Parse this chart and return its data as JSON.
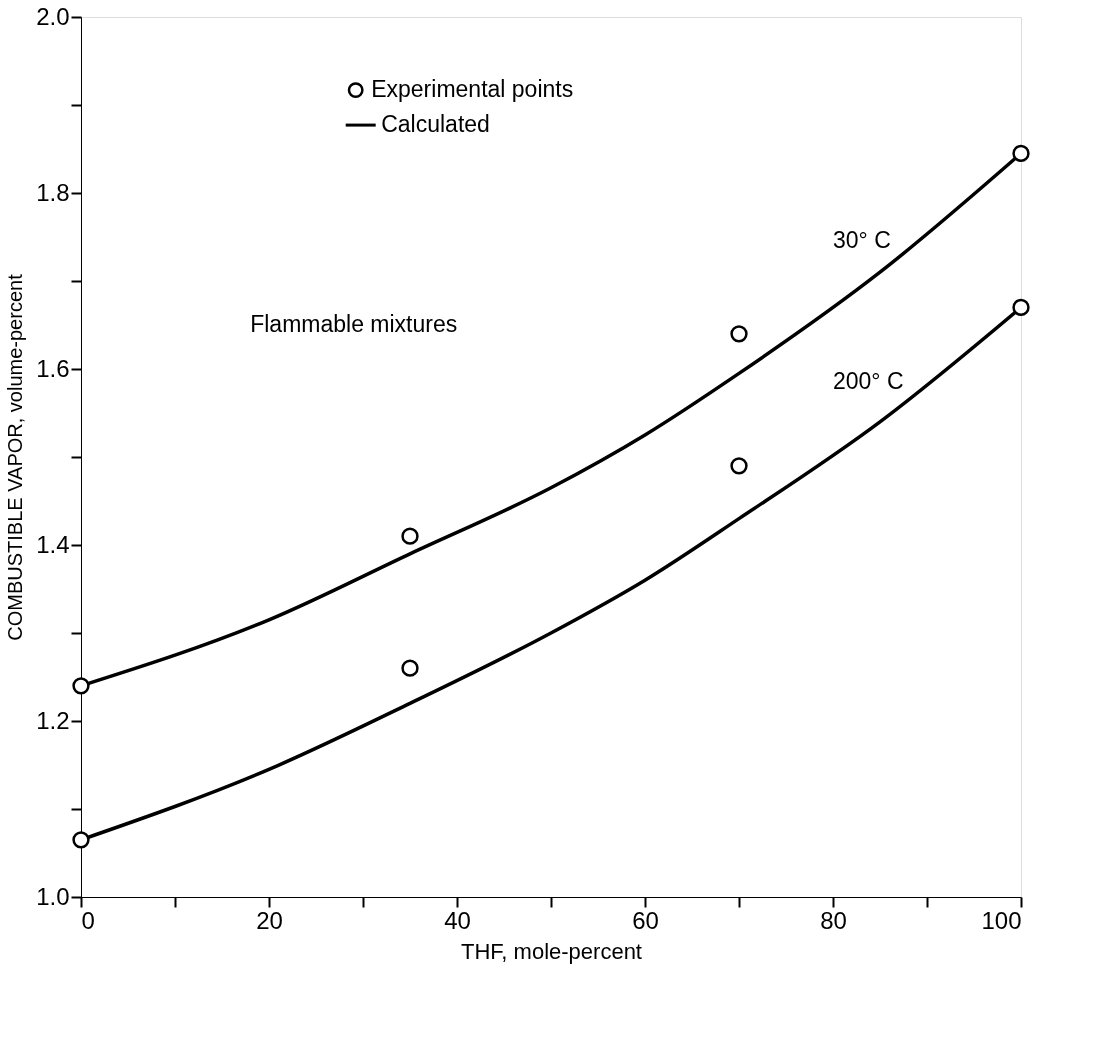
{
  "chart_data": {
    "type": "line",
    "xlabel": "THF, mole-percent",
    "ylabel": "COMBUSTIBLE VAPOR, volume-percent",
    "xlim": [
      0,
      100
    ],
    "ylim": [
      1.0,
      2.0
    ],
    "xticks": [
      0,
      {
        "value": 10,
        "label": null
      },
      20,
      {
        "value": 30,
        "label": null
      },
      40,
      {
        "value": 50,
        "label": null
      },
      60,
      {
        "value": 70,
        "label": null
      },
      80,
      {
        "value": 90,
        "label": null
      },
      100
    ],
    "yticks": [
      {
        "value": 1.0,
        "label": "1.0"
      },
      {
        "value": 1.1,
        "label": null
      },
      1.2,
      {
        "value": 1.3,
        "label": null
      },
      1.4,
      {
        "value": 1.5,
        "label": null
      },
      1.6,
      {
        "value": 1.7,
        "label": null
      },
      1.8,
      {
        "value": 1.9,
        "label": null
      },
      {
        "value": 2.0,
        "label": "2.0"
      }
    ],
    "grid": false,
    "legend": "top",
    "line_style": "solid",
    "series": [
      {
        "name": "Calculated",
        "color": "#000000",
        "x": [
          0,
          20,
          35,
          50,
          60,
          70,
          85,
          100
        ],
        "values": [
          1.24,
          1.315,
          1.39,
          1.465,
          1.525,
          1.595,
          1.71,
          1.845
        ]
      },
      {
        "color": "#000000",
        "x": [
          0,
          20,
          35,
          50,
          60,
          70,
          85,
          100
        ],
        "values": [
          1.065,
          1.145,
          1.22,
          1.3,
          1.36,
          1.43,
          1.54,
          1.67
        ]
      },
      {
        "name": "Experimental points",
        "type": "scatter",
        "marker": "circle",
        "color": "#000000",
        "x": [
          0,
          35,
          70,
          100,
          0,
          35,
          70,
          100
        ],
        "values": [
          1.24,
          1.41,
          1.64,
          1.845,
          1.065,
          1.26,
          1.49,
          1.67
        ]
      }
    ],
    "annotations": [
      "Flammable mixtures",
      "30° C",
      "200° C"
    ]
  }
}
